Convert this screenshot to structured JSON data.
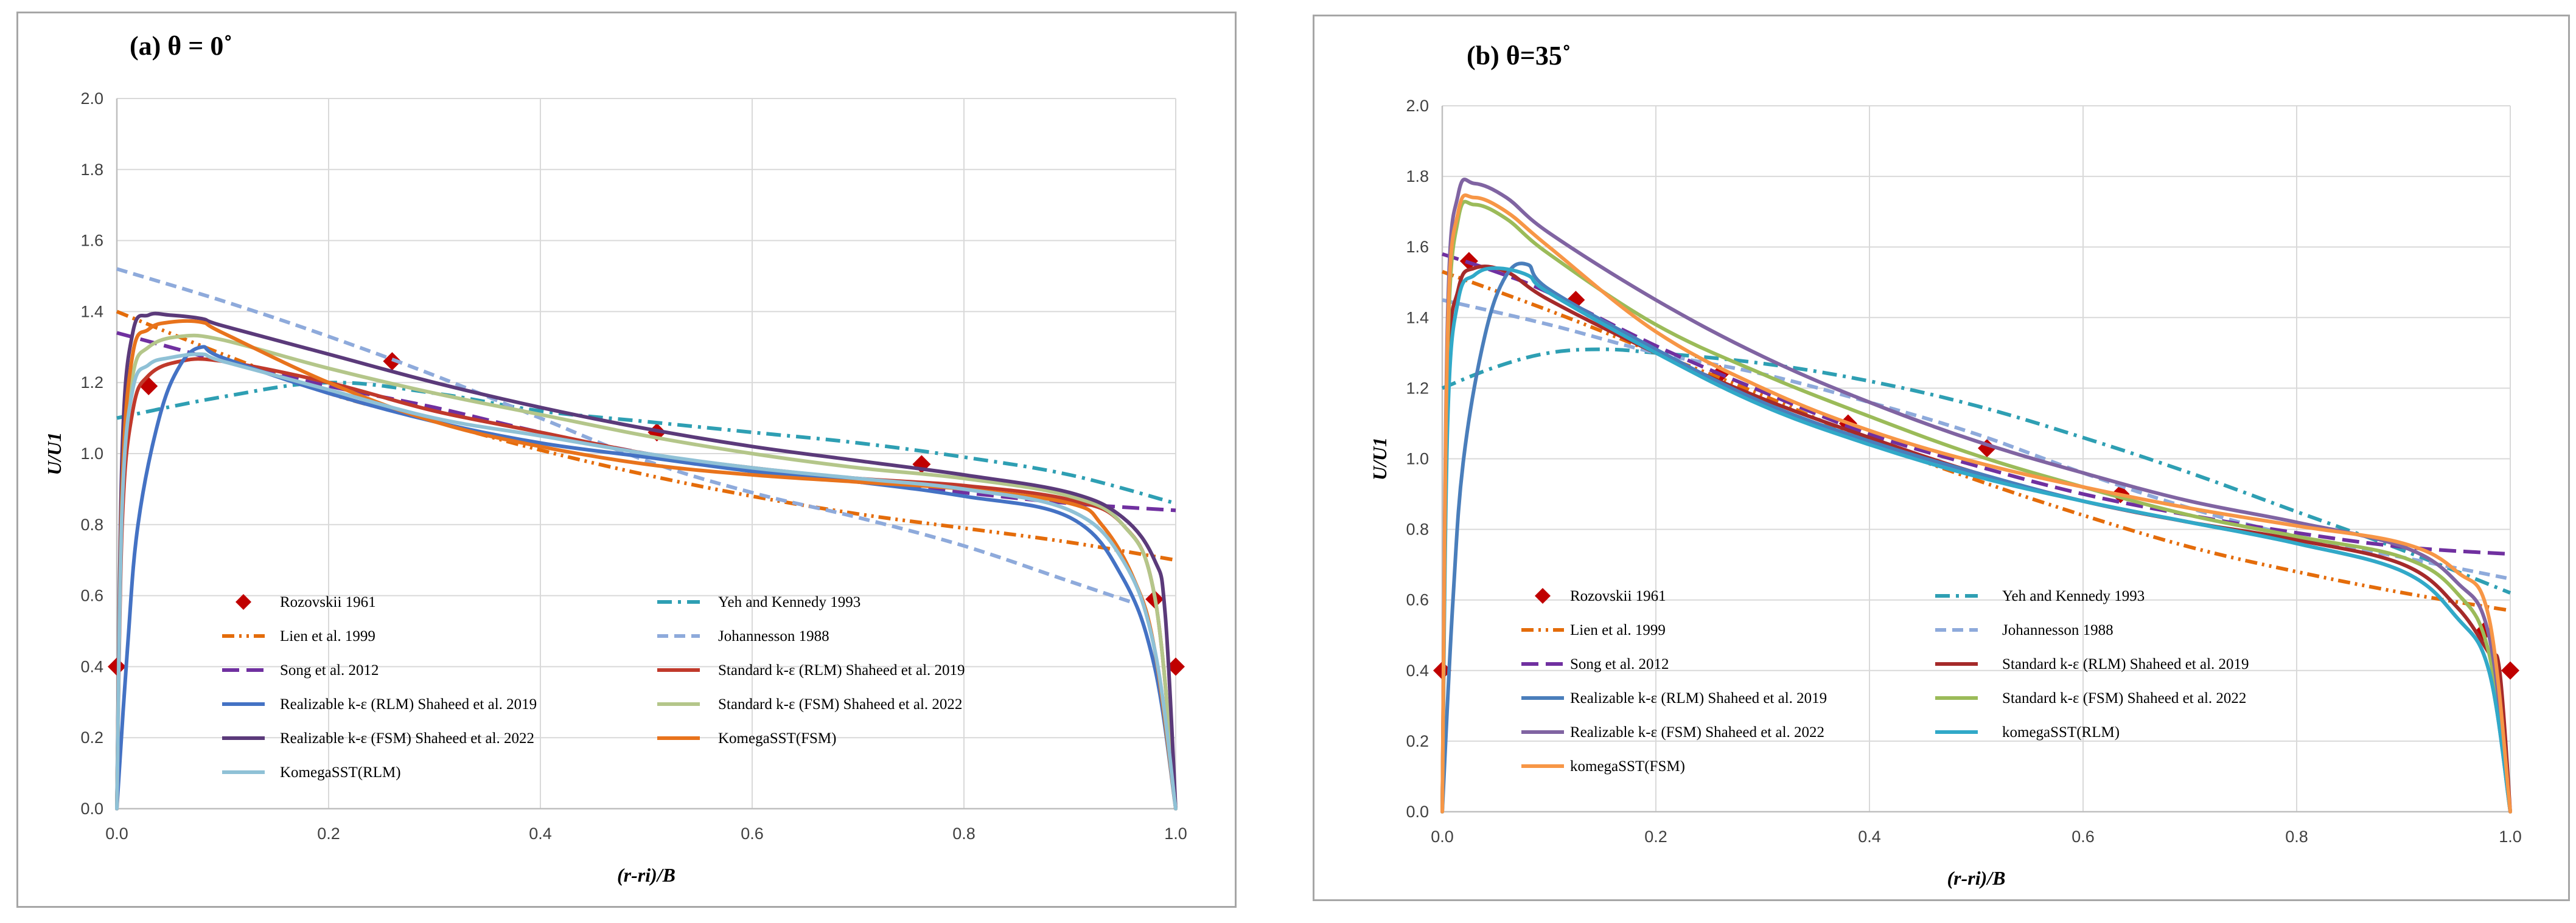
{
  "chart_data": [
    {
      "type": "line",
      "title": "(a) θ = 0˚",
      "xlabel": "(r-ri)/B",
      "ylabel": "U/U1",
      "xlim": [
        0,
        1
      ],
      "ylim": [
        0,
        2
      ],
      "x_ticks": [
        "0.0",
        "0.2",
        "0.4",
        "0.6",
        "0.8",
        "1.0"
      ],
      "y_ticks": [
        "0.0",
        "0.2",
        "0.4",
        "0.6",
        "0.8",
        "1.0",
        "1.2",
        "1.4",
        "1.6",
        "1.8",
        "2.0"
      ],
      "grid": true,
      "legend_position": "lower-left",
      "series": [
        {
          "name": "Rozovskii 1961",
          "color": "#c00000",
          "style": "marker-diamond",
          "x": [
            0.0,
            0.03,
            0.26,
            0.51,
            0.76,
            0.98,
            1.0
          ],
          "y": [
            0.4,
            1.19,
            1.26,
            1.06,
            0.97,
            0.59,
            0.4
          ]
        },
        {
          "name": "Yeh and Kennedy 1993",
          "color": "#2e9fb3",
          "style": "dashdot",
          "x": [
            0.0,
            0.1,
            0.2,
            0.3,
            0.4,
            0.5,
            0.6,
            0.7,
            0.8,
            0.9,
            1.0
          ],
          "y": [
            1.1,
            1.16,
            1.2,
            1.17,
            1.12,
            1.09,
            1.06,
            1.03,
            0.99,
            0.94,
            0.86
          ]
        },
        {
          "name": "Lien et al. 1999",
          "color": "#e46c0a",
          "style": "dashdotdot",
          "x": [
            0.0,
            0.1,
            0.2,
            0.3,
            0.4,
            0.5,
            0.6,
            0.7,
            0.8,
            0.9,
            1.0
          ],
          "y": [
            1.4,
            1.28,
            1.17,
            1.09,
            1.01,
            0.94,
            0.88,
            0.83,
            0.79,
            0.75,
            0.7
          ]
        },
        {
          "name": "Johannesson 1988",
          "color": "#8eaadb",
          "style": "dashed",
          "x": [
            0.0,
            0.1,
            0.2,
            0.3,
            0.4,
            0.5,
            0.6,
            0.7,
            0.8,
            0.9,
            0.96
          ],
          "y": [
            1.52,
            1.43,
            1.33,
            1.22,
            1.1,
            0.98,
            0.89,
            0.82,
            0.74,
            0.64,
            0.58
          ]
        },
        {
          "name": "Song et al. 2012",
          "color": "#7030a0",
          "style": "longdash",
          "x": [
            0.0,
            0.05,
            0.1,
            0.2,
            0.3,
            0.4,
            0.5,
            0.6,
            0.7,
            0.8,
            0.9,
            1.0
          ],
          "y": [
            1.34,
            1.3,
            1.26,
            1.19,
            1.13,
            1.06,
            1.0,
            0.95,
            0.92,
            0.89,
            0.86,
            0.84
          ]
        },
        {
          "name": "Standard k-ε (RLM) Shaheed et al. 2019",
          "color": "#c0392b",
          "style": "solid",
          "x": [
            0.0,
            0.005,
            0.015,
            0.03,
            0.06,
            0.1,
            0.2,
            0.3,
            0.4,
            0.5,
            0.6,
            0.7,
            0.8,
            0.9,
            0.95,
            0.98,
            1.0
          ],
          "y": [
            0.0,
            0.8,
            1.12,
            1.22,
            1.26,
            1.26,
            1.2,
            1.12,
            1.06,
            1.0,
            0.96,
            0.93,
            0.91,
            0.87,
            0.8,
            0.6,
            0.0
          ]
        },
        {
          "name": "Realizable k-ε  (RLM) Shaheed et al. 2019",
          "color": "#4472c4",
          "style": "solid",
          "x": [
            0.0,
            0.01,
            0.02,
            0.04,
            0.06,
            0.08,
            0.1,
            0.2,
            0.3,
            0.4,
            0.5,
            0.6,
            0.7,
            0.8,
            0.9,
            0.95,
            0.98,
            1.0
          ],
          "y": [
            0.0,
            0.45,
            0.8,
            1.1,
            1.25,
            1.3,
            1.27,
            1.17,
            1.09,
            1.03,
            0.99,
            0.95,
            0.92,
            0.88,
            0.82,
            0.65,
            0.4,
            0.0
          ]
        },
        {
          "name": "Standard k-ε (FSM) Shaheed et al. 2022",
          "color": "#b4c68a",
          "style": "solid",
          "x": [
            0.0,
            0.005,
            0.015,
            0.03,
            0.06,
            0.1,
            0.2,
            0.3,
            0.4,
            0.5,
            0.6,
            0.7,
            0.8,
            0.9,
            0.95,
            0.98,
            1.0
          ],
          "y": [
            0.0,
            0.9,
            1.22,
            1.3,
            1.33,
            1.32,
            1.24,
            1.17,
            1.11,
            1.05,
            1.0,
            0.96,
            0.93,
            0.88,
            0.8,
            0.6,
            0.0
          ]
        },
        {
          "name": "Realizable k-ε  (FSM) Shaheed et al. 2022",
          "color": "#5b3a7a",
          "style": "solid",
          "x": [
            0.0,
            0.005,
            0.015,
            0.03,
            0.05,
            0.08,
            0.1,
            0.2,
            0.3,
            0.4,
            0.5,
            0.6,
            0.7,
            0.8,
            0.9,
            0.95,
            0.98,
            0.99,
            1.0
          ],
          "y": [
            0.0,
            1.0,
            1.34,
            1.39,
            1.39,
            1.38,
            1.36,
            1.28,
            1.2,
            1.13,
            1.07,
            1.02,
            0.98,
            0.94,
            0.89,
            0.82,
            0.7,
            0.55,
            0.0
          ]
        },
        {
          "name": "KomegaSST(FSM)",
          "color": "#e8731c",
          "style": "solid",
          "x": [
            0.0,
            0.005,
            0.015,
            0.03,
            0.05,
            0.08,
            0.1,
            0.2,
            0.3,
            0.4,
            0.5,
            0.6,
            0.7,
            0.8,
            0.9,
            0.93,
            0.96,
            0.98,
            1.0
          ],
          "y": [
            0.0,
            0.9,
            1.28,
            1.35,
            1.37,
            1.37,
            1.34,
            1.2,
            1.09,
            1.02,
            0.97,
            0.94,
            0.92,
            0.9,
            0.86,
            0.8,
            0.65,
            0.45,
            0.0
          ]
        },
        {
          "name": "KomegaSST(RLM)",
          "color": "#8fc1d6",
          "style": "solid",
          "x": [
            0.0,
            0.005,
            0.015,
            0.03,
            0.05,
            0.08,
            0.1,
            0.2,
            0.3,
            0.4,
            0.5,
            0.6,
            0.7,
            0.8,
            0.9,
            0.95,
            0.98,
            1.0
          ],
          "y": [
            0.0,
            0.85,
            1.18,
            1.25,
            1.27,
            1.28,
            1.26,
            1.18,
            1.1,
            1.05,
            1.0,
            0.96,
            0.93,
            0.9,
            0.84,
            0.7,
            0.45,
            0.0
          ]
        }
      ]
    },
    {
      "type": "line",
      "title": "(b) θ=35˚",
      "xlabel": "(r-ri)/B",
      "ylabel": "U/U1",
      "xlim": [
        0,
        1
      ],
      "ylim": [
        0,
        2
      ],
      "x_ticks": [
        "0.0",
        "0.2",
        "0.4",
        "0.6",
        "0.8",
        "1.0"
      ],
      "y_ticks": [
        "0.0",
        "0.2",
        "0.4",
        "0.6",
        "0.8",
        "1.0",
        "1.2",
        "1.4",
        "1.6",
        "1.8",
        "2.0"
      ],
      "grid": true,
      "legend_position": "lower-left",
      "series": [
        {
          "name": "Rozovskii 1961",
          "color": "#c00000",
          "style": "marker-diamond",
          "x": [
            0.0,
            0.025,
            0.125,
            0.26,
            0.38,
            0.51,
            0.635,
            0.975,
            1.0
          ],
          "y": [
            0.4,
            1.56,
            1.45,
            1.24,
            1.1,
            1.03,
            0.9,
            0.51,
            0.4
          ]
        },
        {
          "name": "Yeh and Kennedy 1993",
          "color": "#2e9fb3",
          "style": "dashdot",
          "x": [
            0.0,
            0.05,
            0.1,
            0.15,
            0.2,
            0.3,
            0.4,
            0.5,
            0.6,
            0.7,
            0.8,
            0.9,
            1.0
          ],
          "y": [
            1.2,
            1.26,
            1.3,
            1.31,
            1.3,
            1.27,
            1.22,
            1.15,
            1.06,
            0.96,
            0.85,
            0.74,
            0.62
          ]
        },
        {
          "name": "Lien et al. 1999",
          "color": "#e46c0a",
          "style": "dashdotdot",
          "x": [
            0.0,
            0.1,
            0.2,
            0.3,
            0.4,
            0.5,
            0.6,
            0.7,
            0.8,
            0.9,
            1.0
          ],
          "y": [
            1.53,
            1.42,
            1.3,
            1.18,
            1.05,
            0.94,
            0.84,
            0.75,
            0.68,
            0.62,
            0.57
          ]
        },
        {
          "name": "Johannesson 1988",
          "color": "#8eaadb",
          "style": "dashed",
          "x": [
            0.0,
            0.1,
            0.2,
            0.3,
            0.4,
            0.5,
            0.6,
            0.7,
            0.8,
            0.9,
            1.0
          ],
          "y": [
            1.45,
            1.38,
            1.3,
            1.24,
            1.16,
            1.07,
            0.96,
            0.86,
            0.78,
            0.72,
            0.66
          ]
        },
        {
          "name": "Song et al. 2012",
          "color": "#7030a0",
          "style": "longdash",
          "x": [
            0.0,
            0.05,
            0.1,
            0.2,
            0.3,
            0.4,
            0.5,
            0.6,
            0.7,
            0.8,
            0.9,
            1.0
          ],
          "y": [
            1.58,
            1.53,
            1.47,
            1.32,
            1.19,
            1.07,
            0.98,
            0.9,
            0.84,
            0.79,
            0.75,
            0.73
          ]
        },
        {
          "name": "Standard k-ε (RLM) Shaheed et al. 2019",
          "color": "#a52a2a",
          "style": "solid",
          "x": [
            0.0,
            0.005,
            0.015,
            0.03,
            0.06,
            0.1,
            0.2,
            0.3,
            0.4,
            0.5,
            0.6,
            0.7,
            0.8,
            0.9,
            0.95,
            0.98,
            0.99,
            1.0
          ],
          "y": [
            0.0,
            1.2,
            1.48,
            1.54,
            1.53,
            1.45,
            1.3,
            1.17,
            1.06,
            0.96,
            0.88,
            0.82,
            0.77,
            0.7,
            0.58,
            0.45,
            0.4,
            0.0
          ]
        },
        {
          "name": "Realizable k-ε  (RLM) Shaheed et al. 2019",
          "color": "#4a7ebb",
          "style": "solid",
          "x": [
            0.0,
            0.01,
            0.02,
            0.04,
            0.06,
            0.08,
            0.1,
            0.2,
            0.3,
            0.4,
            0.5,
            0.6,
            0.7,
            0.8,
            0.9,
            0.95,
            0.98,
            1.0
          ],
          "y": [
            0.0,
            0.6,
            1.0,
            1.35,
            1.52,
            1.55,
            1.48,
            1.31,
            1.16,
            1.05,
            0.96,
            0.88,
            0.82,
            0.76,
            0.68,
            0.55,
            0.4,
            0.0
          ]
        },
        {
          "name": "Standard k-ε (FSM) Shaheed et al. 2022",
          "color": "#9bbb59",
          "style": "solid",
          "x": [
            0.0,
            0.005,
            0.015,
            0.03,
            0.06,
            0.1,
            0.2,
            0.3,
            0.4,
            0.5,
            0.6,
            0.7,
            0.8,
            0.9,
            0.95,
            0.98,
            1.0
          ],
          "y": [
            0.0,
            1.3,
            1.68,
            1.72,
            1.68,
            1.58,
            1.38,
            1.24,
            1.12,
            1.01,
            0.92,
            0.84,
            0.78,
            0.72,
            0.62,
            0.45,
            0.0
          ]
        },
        {
          "name": "Realizable k-ε  (FSM) Shaheed et al. 2022",
          "color": "#8064a2",
          "style": "solid",
          "x": [
            0.0,
            0.005,
            0.015,
            0.03,
            0.06,
            0.1,
            0.2,
            0.3,
            0.4,
            0.5,
            0.6,
            0.7,
            0.8,
            0.9,
            0.95,
            0.98,
            1.0
          ],
          "y": [
            0.0,
            1.4,
            1.75,
            1.78,
            1.74,
            1.64,
            1.45,
            1.29,
            1.16,
            1.05,
            0.96,
            0.88,
            0.82,
            0.75,
            0.65,
            0.5,
            0.0
          ]
        },
        {
          "name": "komegaSST(RLM)",
          "color": "#31a9c8",
          "style": "solid",
          "x": [
            0.0,
            0.005,
            0.015,
            0.03,
            0.05,
            0.08,
            0.1,
            0.2,
            0.3,
            0.4,
            0.5,
            0.6,
            0.7,
            0.8,
            0.9,
            0.95,
            0.98,
            1.0
          ],
          "y": [
            0.0,
            1.1,
            1.45,
            1.52,
            1.54,
            1.52,
            1.47,
            1.3,
            1.15,
            1.04,
            0.95,
            0.88,
            0.82,
            0.76,
            0.68,
            0.55,
            0.4,
            0.0
          ]
        },
        {
          "name": "komegaSST(FSM)",
          "color": "#f79646",
          "style": "solid",
          "x": [
            0.0,
            0.005,
            0.015,
            0.03,
            0.06,
            0.1,
            0.2,
            0.3,
            0.4,
            0.5,
            0.6,
            0.7,
            0.8,
            0.9,
            0.95,
            0.98,
            1.0
          ],
          "y": [
            0.0,
            1.35,
            1.7,
            1.74,
            1.7,
            1.6,
            1.36,
            1.2,
            1.08,
            0.99,
            0.92,
            0.86,
            0.81,
            0.76,
            0.68,
            0.55,
            0.0
          ]
        }
      ]
    }
  ]
}
